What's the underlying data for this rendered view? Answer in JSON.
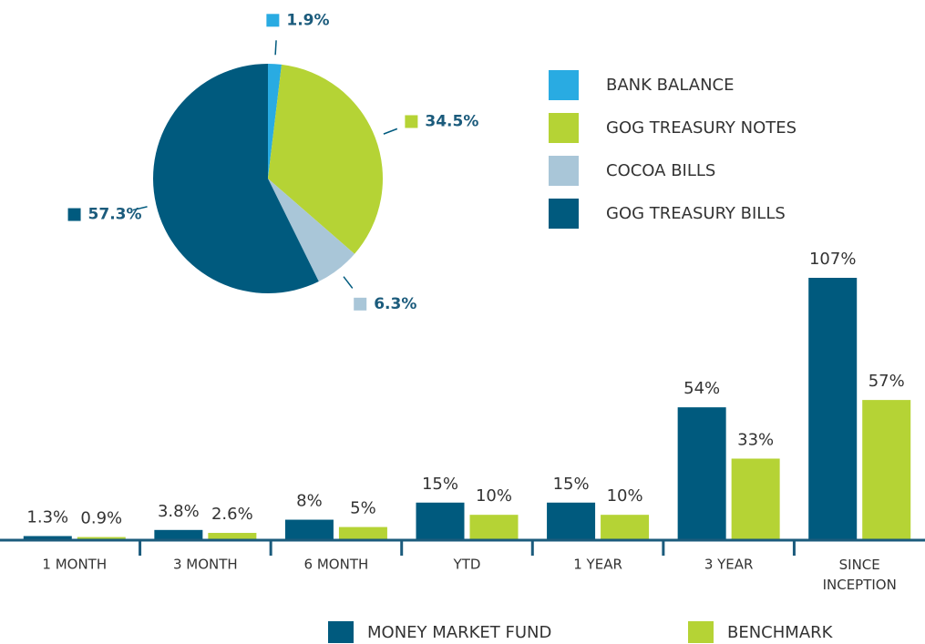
{
  "chart_data": [
    {
      "type": "pie",
      "categories": [
        "BANK BALANCE",
        "GOG TREASURY NOTES",
        "COCOA BILLS",
        "GOG TREASURY BILLS"
      ],
      "values": [
        1.9,
        34.5,
        6.3,
        57.3
      ],
      "value_labels": [
        "1.9%",
        "34.5%",
        "6.3%",
        "57.3%"
      ],
      "colors": [
        "#29abe2",
        "#b5d335",
        "#a9c6d8",
        "#005a7e"
      ]
    },
    {
      "type": "bar",
      "categories": [
        "1 MONTH",
        "3 MONTH",
        "6 MONTH",
        "YTD",
        "1 YEAR",
        "3 YEAR",
        "SINCE INCEPTION"
      ],
      "series": [
        {
          "name": "MONEY MARKET FUND",
          "color": "#005a7e",
          "values": [
            1.3,
            3.8,
            8,
            15,
            15,
            54,
            107
          ],
          "value_labels": [
            "1.3%",
            "3.8%",
            "8%",
            "15%",
            "15%",
            "54%",
            "107%"
          ]
        },
        {
          "name": "BENCHMARK",
          "color": "#b5d335",
          "values": [
            0.9,
            2.6,
            5,
            10,
            10,
            33,
            57
          ],
          "value_labels": [
            "0.9%",
            "2.6%",
            "5%",
            "10%",
            "10%",
            "33%",
            "57%"
          ]
        }
      ]
    }
  ]
}
